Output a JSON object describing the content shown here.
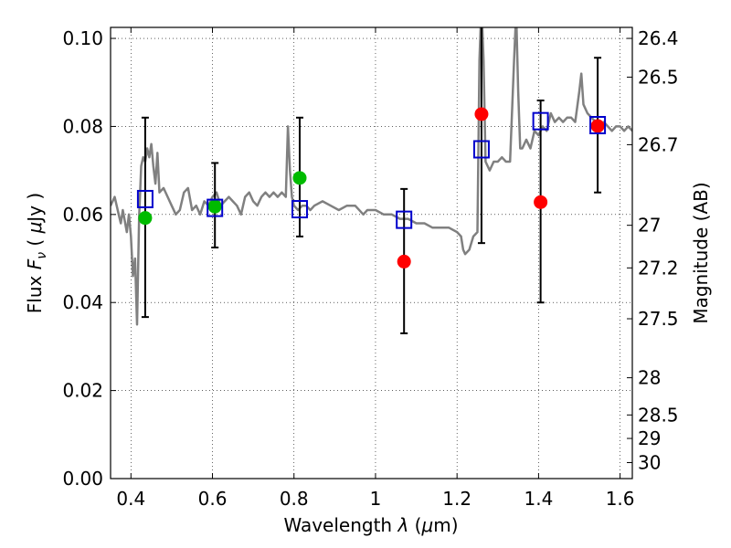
{
  "chart_data": {
    "type": "scatter",
    "xlabel": {
      "prefix": "Wavelength ",
      "symbol": "λ",
      "unit_pre": " (",
      "mu": "μ",
      "unit_post": "m)"
    },
    "ylabel": {
      "prefix": "Flux ",
      "symbol": "F",
      "sub": "ν",
      "unit_pre": " ( ",
      "mu": "μ",
      "unit_post": "Jy )"
    },
    "ylabel_right": "Magnitude (AB)",
    "xlim": [
      0.35,
      1.63
    ],
    "ylim": [
      0.0,
      0.1025
    ],
    "grid": true,
    "x_ticks": [
      0.4,
      0.6,
      0.8,
      1.0,
      1.2,
      1.4,
      1.6
    ],
    "x_tick_labels": [
      "0.4",
      "0.6",
      "0.8",
      "1",
      "1.2",
      "1.4",
      "1.6"
    ],
    "y_ticks": [
      0.0,
      0.02,
      0.04,
      0.06,
      0.08,
      0.1
    ],
    "y_tick_labels": [
      "0.00",
      "0.02",
      "0.04",
      "0.06",
      "0.08",
      "0.10"
    ],
    "mag_ticks": [
      26.4,
      26.5,
      26.7,
      27,
      27.2,
      27.5,
      28,
      28.5,
      29,
      30
    ],
    "mag_tick_labels": [
      "26.4",
      "26.5",
      "26.7",
      "27",
      "27.2",
      "27.5",
      "28",
      "28.5",
      "29",
      "30"
    ],
    "model_points": {
      "name": "model photometry",
      "marker": "open-square",
      "color": "#0000cc",
      "x": [
        0.435,
        0.606,
        0.814,
        1.07,
        1.26,
        1.405,
        1.545
      ],
      "y": [
        0.0635,
        0.0615,
        0.0612,
        0.0588,
        0.0748,
        0.0812,
        0.0803
      ]
    },
    "detections": {
      "name": "detections",
      "marker": "filled-circle",
      "color": "#00bb00",
      "x": [
        0.435,
        0.606,
        0.814
      ],
      "y": [
        0.0592,
        0.0618,
        0.0683
      ],
      "yerr_low": [
        0.0225,
        0.0093,
        0.0133
      ],
      "yerr_high": [
        0.0228,
        0.0099,
        0.0137
      ]
    },
    "non_detections": {
      "name": "non-detections",
      "marker": "filled-circle",
      "color": "#ff0000",
      "x": [
        1.07,
        1.26,
        1.405,
        1.545
      ],
      "y": [
        0.0493,
        0.0828,
        0.0628,
        0.0801
      ],
      "yerr_low": [
        0.0163,
        0.0293,
        0.0228,
        0.0151
      ],
      "yerr_high": [
        0.0165,
        0.025,
        0.0231,
        0.0155
      ]
    },
    "sed_model": {
      "name": "SED model",
      "color": "#808080",
      "x": [
        0.35,
        0.36,
        0.37,
        0.375,
        0.38,
        0.39,
        0.395,
        0.4,
        0.405,
        0.41,
        0.415,
        0.42,
        0.425,
        0.43,
        0.435,
        0.44,
        0.445,
        0.45,
        0.455,
        0.46,
        0.465,
        0.47,
        0.48,
        0.49,
        0.5,
        0.51,
        0.52,
        0.53,
        0.54,
        0.55,
        0.56,
        0.57,
        0.58,
        0.59,
        0.6,
        0.61,
        0.62,
        0.63,
        0.64,
        0.65,
        0.66,
        0.67,
        0.68,
        0.69,
        0.7,
        0.71,
        0.72,
        0.73,
        0.74,
        0.75,
        0.76,
        0.77,
        0.78,
        0.785,
        0.79,
        0.795,
        0.8,
        0.81,
        0.82,
        0.83,
        0.84,
        0.85,
        0.87,
        0.89,
        0.91,
        0.93,
        0.95,
        0.97,
        0.98,
        0.99,
        1.0,
        1.02,
        1.04,
        1.06,
        1.08,
        1.1,
        1.12,
        1.14,
        1.16,
        1.18,
        1.2,
        1.21,
        1.215,
        1.22,
        1.23,
        1.24,
        1.25,
        1.255,
        1.26,
        1.265,
        1.27,
        1.28,
        1.29,
        1.3,
        1.31,
        1.32,
        1.33,
        1.34,
        1.345,
        1.35,
        1.355,
        1.36,
        1.37,
        1.375,
        1.38,
        1.39,
        1.4,
        1.41,
        1.42,
        1.43,
        1.44,
        1.45,
        1.46,
        1.47,
        1.48,
        1.49,
        1.5,
        1.505,
        1.51,
        1.52,
        1.53,
        1.54,
        1.55,
        1.56,
        1.57,
        1.58,
        1.59,
        1.6,
        1.61,
        1.62,
        1.63
      ],
      "y": [
        0.062,
        0.064,
        0.06,
        0.058,
        0.061,
        0.056,
        0.06,
        0.055,
        0.046,
        0.05,
        0.035,
        0.059,
        0.071,
        0.073,
        0.072,
        0.075,
        0.073,
        0.076,
        0.071,
        0.067,
        0.074,
        0.065,
        0.066,
        0.064,
        0.062,
        0.06,
        0.061,
        0.065,
        0.066,
        0.061,
        0.062,
        0.06,
        0.063,
        0.062,
        0.064,
        0.065,
        0.062,
        0.063,
        0.064,
        0.063,
        0.062,
        0.06,
        0.064,
        0.065,
        0.063,
        0.062,
        0.064,
        0.065,
        0.064,
        0.065,
        0.064,
        0.065,
        0.064,
        0.08,
        0.07,
        0.064,
        0.062,
        0.061,
        0.062,
        0.062,
        0.061,
        0.062,
        0.063,
        0.062,
        0.061,
        0.062,
        0.062,
        0.06,
        0.061,
        0.061,
        0.061,
        0.06,
        0.06,
        0.059,
        0.059,
        0.058,
        0.058,
        0.057,
        0.057,
        0.057,
        0.056,
        0.055,
        0.052,
        0.051,
        0.052,
        0.055,
        0.056,
        0.095,
        0.108,
        0.095,
        0.072,
        0.07,
        0.072,
        0.072,
        0.073,
        0.072,
        0.072,
        0.095,
        0.106,
        0.088,
        0.075,
        0.075,
        0.077,
        0.076,
        0.075,
        0.079,
        0.078,
        0.08,
        0.079,
        0.083,
        0.081,
        0.082,
        0.081,
        0.082,
        0.082,
        0.081,
        0.088,
        0.092,
        0.085,
        0.083,
        0.082,
        0.081,
        0.08,
        0.081,
        0.08,
        0.079,
        0.08,
        0.08,
        0.079,
        0.08,
        0.079
      ]
    }
  }
}
